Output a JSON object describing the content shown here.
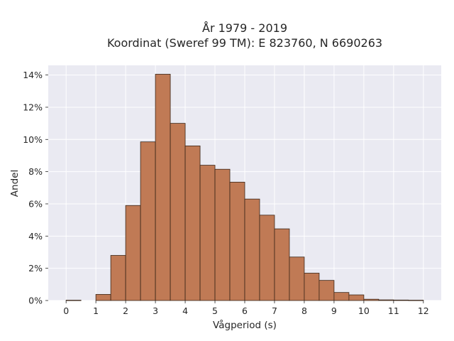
{
  "chart_data": {
    "type": "bar",
    "title_line1": "År 1979 - 2019",
    "title_line2": "Koordinat (Sweref 99 TM): E 823760, N 6690263",
    "xlabel": "Vågperiod (s)",
    "ylabel": "Andel",
    "xlim": [
      -0.6,
      12.6
    ],
    "ylim": [
      0,
      14.6
    ],
    "x_ticks": [
      0,
      1,
      2,
      3,
      4,
      5,
      6,
      7,
      8,
      9,
      10,
      11,
      12
    ],
    "x_tick_labels": [
      "0",
      "1",
      "2",
      "3",
      "4",
      "5",
      "6",
      "7",
      "8",
      "9",
      "10",
      "11",
      "12"
    ],
    "y_ticks": [
      0,
      2,
      4,
      6,
      8,
      10,
      12,
      14
    ],
    "y_tick_labels": [
      "0%",
      "2%",
      "4%",
      "6%",
      "8%",
      "10%",
      "12%",
      "14%"
    ],
    "bin_width": 0.5,
    "bin_starts": [
      0,
      0.5,
      1,
      1.5,
      2,
      2.5,
      3,
      3.5,
      4,
      4.5,
      5,
      5.5,
      6,
      6.5,
      7,
      7.5,
      8,
      8.5,
      9,
      9.5,
      10,
      10.5,
      11,
      11.5
    ],
    "values": [
      0.02,
      0,
      0.38,
      2.8,
      5.9,
      9.85,
      14.05,
      11.0,
      9.6,
      8.4,
      8.15,
      7.35,
      6.3,
      5.3,
      4.45,
      2.7,
      1.7,
      1.25,
      0.5,
      0.35,
      0.08,
      0.04,
      0.03,
      0.02
    ],
    "grid": true,
    "colors": {
      "bar": "#c07a55",
      "edge": "#3a2618",
      "plot_background": "#eaeaf2",
      "grid": "#ffffff",
      "text": "#262626"
    }
  }
}
